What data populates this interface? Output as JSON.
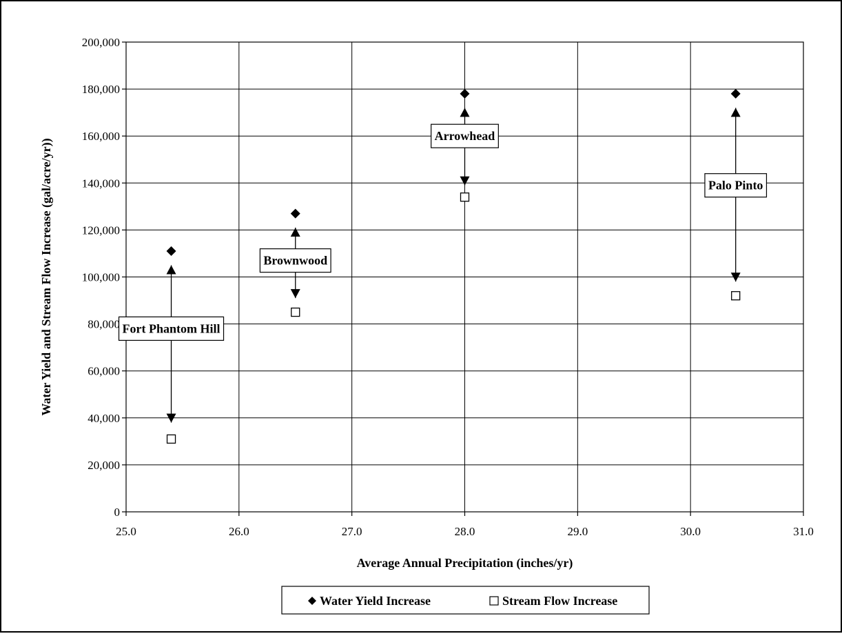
{
  "chart_data": {
    "type": "scatter",
    "xlabel": "Average Annual Precipitation (inches/yr)",
    "ylabel": "Water Yield and Stream Flow Increase (gal/acre/yr))",
    "xlim": [
      25.0,
      31.0
    ],
    "ylim": [
      0,
      200000
    ],
    "x_ticks": [
      25.0,
      26.0,
      27.0,
      28.0,
      29.0,
      30.0,
      31.0
    ],
    "x_tick_labels": [
      "25.0",
      "26.0",
      "27.0",
      "28.0",
      "29.0",
      "30.0",
      "31.0"
    ],
    "y_ticks": [
      0,
      20000,
      40000,
      60000,
      80000,
      100000,
      120000,
      140000,
      160000,
      180000,
      200000
    ],
    "y_tick_labels": [
      "0",
      "20,000",
      "40,000",
      "60,000",
      "80,000",
      "100,000",
      "120,000",
      "140,000",
      "160,000",
      "180,000",
      "200,000"
    ],
    "grid": true,
    "legend_position": "bottom",
    "series": [
      {
        "name": "Water Yield Increase",
        "marker": "diamond",
        "color": "#000000",
        "points": [
          {
            "x": 25.4,
            "y": 111000
          },
          {
            "x": 26.5,
            "y": 127000
          },
          {
            "x": 28.0,
            "y": 178000
          },
          {
            "x": 30.4,
            "y": 178000
          }
        ]
      },
      {
        "name": "Stream Flow Increase",
        "marker": "open-square",
        "color": "#000000",
        "points": [
          {
            "x": 25.4,
            "y": 31000
          },
          {
            "x": 26.5,
            "y": 85000
          },
          {
            "x": 28.0,
            "y": 134000
          },
          {
            "x": 30.4,
            "y": 92000
          }
        ]
      }
    ],
    "annotations": [
      {
        "text": "Fort Phantom Hill",
        "x": 25.4,
        "y": 78000,
        "arrow_top": 105000,
        "arrow_bottom": 38000
      },
      {
        "text": "Brownwood",
        "x": 26.5,
        "y": 107000,
        "arrow_top": 121000,
        "arrow_bottom": 91000
      },
      {
        "text": "Arrowhead",
        "x": 28.0,
        "y": 160000,
        "arrow_top": 172000,
        "arrow_bottom": 139000
      },
      {
        "text": "Palo Pinto",
        "x": 30.4,
        "y": 139000,
        "arrow_top": 172000,
        "arrow_bottom": 98000
      }
    ]
  }
}
